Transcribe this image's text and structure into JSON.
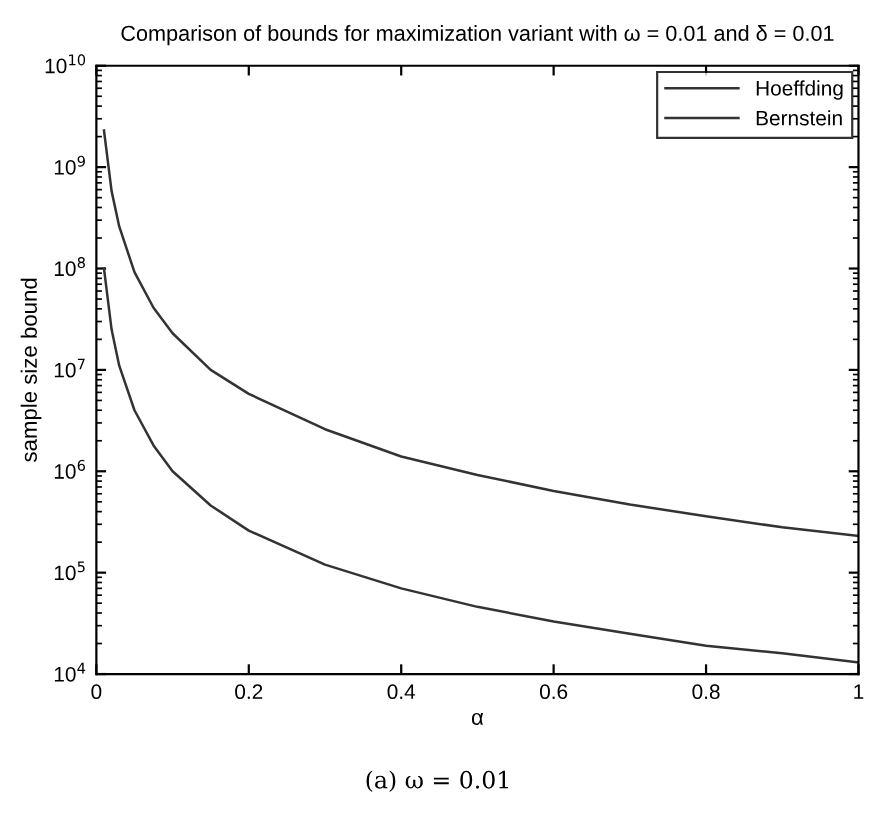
{
  "chart_data": {
    "type": "line",
    "title": "Comparison of bounds for maximization variant with ω = 0.01 and δ = 0.01",
    "xlabel": "α",
    "ylabel": "sample size bound",
    "annotations": [
      "(a) ω = 0.01"
    ],
    "x": [
      0.01,
      0.02,
      0.03,
      0.05,
      0.075,
      0.1,
      0.15,
      0.2,
      0.3,
      0.4,
      0.5,
      0.6,
      0.7,
      0.8,
      0.9,
      1.0
    ],
    "series": [
      {
        "name": "Hoeffding",
        "color": "#333333",
        "values": [
          2300000000,
          580000000,
          260000000,
          92000000,
          41000000,
          23000000,
          10000000,
          5800000,
          2600000,
          1400000,
          920000,
          640000,
          470000,
          360000,
          280000,
          230000
        ]
      },
      {
        "name": "Bernstein",
        "color": "#333333",
        "values": [
          100000000,
          25000000,
          11000000,
          4000000,
          1800000,
          1000000,
          460000,
          260000,
          120000,
          70000,
          46000,
          33000,
          25000,
          19000,
          16000,
          13000
        ]
      }
    ],
    "log": "y",
    "xlim": [
      0,
      1
    ],
    "ylim": [
      10000,
      10000000000
    ],
    "xticks": [
      0,
      0.2,
      0.4,
      0.6,
      0.8,
      1
    ],
    "yticks": [
      {
        "value": 10000,
        "label": "10$^{4}$"
      },
      {
        "value": 100000,
        "label": "10$^{5}$"
      },
      {
        "value": 1000000,
        "label": "10$^{6}$"
      },
      {
        "value": 10000000,
        "label": "10$^{7}$"
      },
      {
        "value": 100000000,
        "label": "10$^{8}$"
      },
      {
        "value": 1000000000,
        "label": "10$^{9}$"
      },
      {
        "value": 10000000000,
        "label": "10$^{10}$"
      }
    ],
    "grid": false,
    "legend": "top right",
    "marker": "none",
    "line_style": "solid"
  }
}
